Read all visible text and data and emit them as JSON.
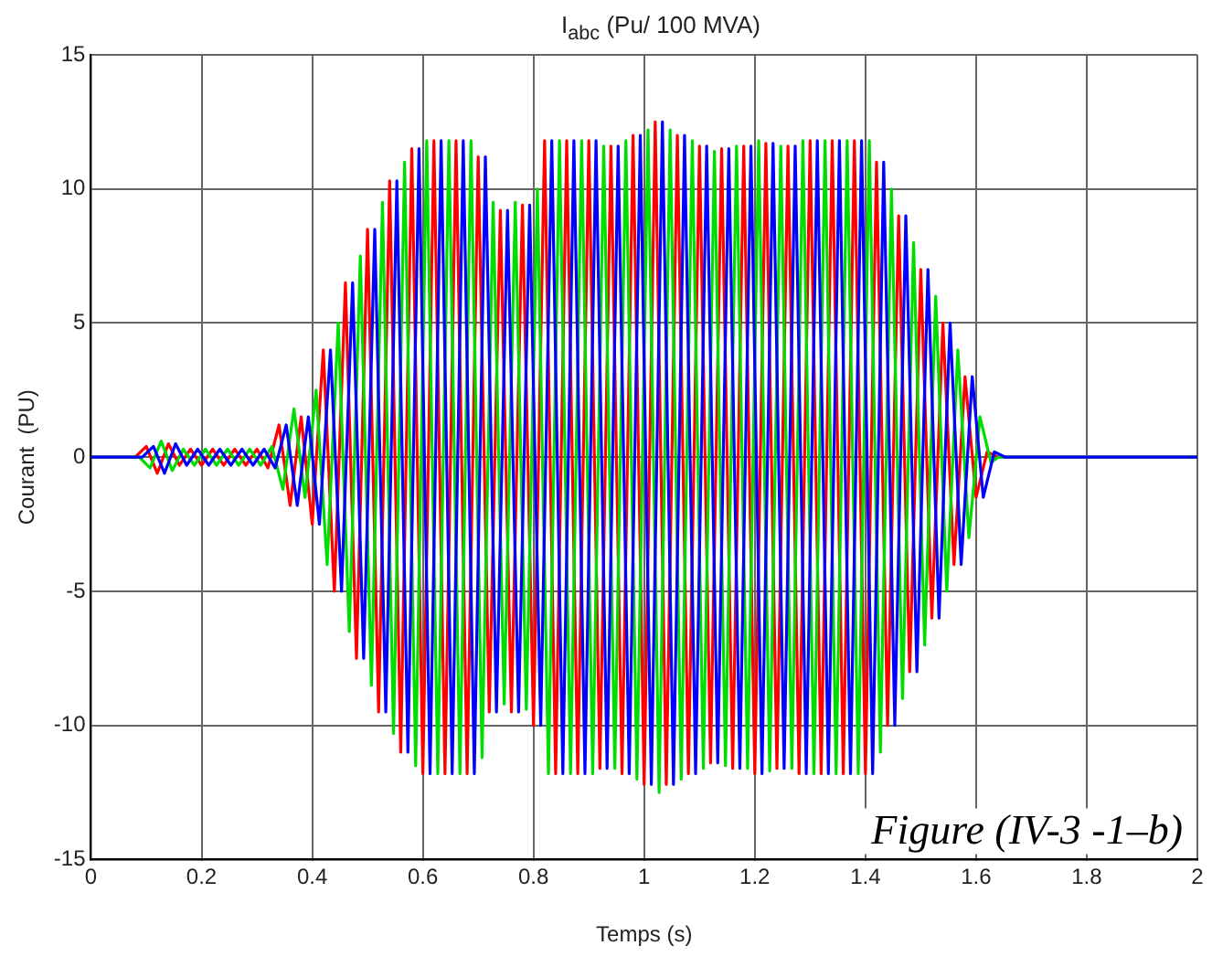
{
  "chart_data": {
    "type": "line",
    "title": "I$_{abc}$    (Pu/ 100 MVA)",
    "xlabel": "Temps (s)",
    "ylabel": "Courant  (PU)",
    "annotations": [
      "Figure (IV-3 -1–b)"
    ],
    "xlim": [
      0,
      2
    ],
    "xticks": [
      0,
      0.2,
      0.4,
      0.6,
      0.8,
      1,
      1.2,
      1.4,
      1.6,
      1.8,
      2
    ],
    "ylim": [
      -15,
      15
    ],
    "yticks": [
      -15,
      -10,
      -5,
      0,
      5,
      10,
      15
    ],
    "grid": true,
    "marker": "none",
    "line_style": "solid",
    "series": [
      {
        "color": "#0000ff",
        "x": [
          0,
          0.093,
          0.113,
          0.133,
          0.153,
          0.173,
          0.193,
          0.213,
          0.233,
          0.253,
          0.273,
          0.293,
          0.313,
          0.333,
          0.353,
          0.373,
          0.393,
          0.413,
          0.433,
          0.453,
          0.473,
          0.493,
          0.513,
          0.533,
          0.553,
          0.573,
          0.593,
          0.613,
          0.633,
          0.653,
          0.673,
          0.693,
          0.713,
          0.733,
          0.753,
          0.773,
          0.793,
          0.813,
          0.833,
          0.853,
          0.873,
          0.893,
          0.913,
          0.933,
          0.953,
          0.973,
          0.993,
          1.013,
          1.033,
          1.053,
          1.073,
          1.093,
          1.113,
          1.133,
          1.153,
          1.173,
          1.193,
          1.213,
          1.233,
          1.253,
          1.273,
          1.293,
          1.313,
          1.333,
          1.353,
          1.373,
          1.393,
          1.413,
          1.433,
          1.453,
          1.473,
          1.493,
          1.513,
          1.533,
          1.553,
          1.573,
          1.593,
          1.613,
          1.633,
          1.653,
          2
        ],
        "values": [
          0,
          0,
          0.4,
          -0.6,
          0.5,
          -0.3,
          0.3,
          -0.3,
          0.3,
          -0.3,
          0.3,
          -0.3,
          0.3,
          -0.4,
          1.2,
          -1.8,
          1.5,
          -2.5,
          4,
          -5,
          6.5,
          -7.5,
          8.5,
          -9.5,
          10.3,
          -11,
          11.5,
          -11.8,
          11.8,
          -11.8,
          11.8,
          -11.8,
          11.2,
          -9.5,
          9.2,
          -9.5,
          9.4,
          -10,
          11.8,
          -11.8,
          11.8,
          -11.8,
          11.8,
          -11.6,
          11.6,
          -11.8,
          12,
          -12.2,
          12.5,
          -12.2,
          12,
          -11.8,
          11.6,
          -11.4,
          11.5,
          -11.6,
          11.6,
          -11.8,
          11.7,
          -11.6,
          11.6,
          -11.8,
          11.8,
          -11.8,
          11.8,
          -11.8,
          11.8,
          -11.8,
          11,
          -10,
          9,
          -8,
          7,
          -6,
          5,
          -4,
          3,
          -1.5,
          0.2,
          0,
          0
        ]
      },
      {
        "color": "#00dd00",
        "x": [
          0,
          0.087,
          0.107,
          0.127,
          0.147,
          0.167,
          0.187,
          0.207,
          0.227,
          0.247,
          0.267,
          0.287,
          0.307,
          0.327,
          0.347,
          0.367,
          0.387,
          0.407,
          0.427,
          0.447,
          0.467,
          0.487,
          0.507,
          0.527,
          0.547,
          0.567,
          0.587,
          0.607,
          0.627,
          0.647,
          0.667,
          0.687,
          0.707,
          0.727,
          0.747,
          0.767,
          0.787,
          0.807,
          0.827,
          0.847,
          0.867,
          0.887,
          0.907,
          0.927,
          0.947,
          0.967,
          0.987,
          1.007,
          1.027,
          1.047,
          1.067,
          1.087,
          1.107,
          1.127,
          1.147,
          1.167,
          1.187,
          1.207,
          1.227,
          1.247,
          1.267,
          1.287,
          1.307,
          1.327,
          1.347,
          1.367,
          1.387,
          1.407,
          1.427,
          1.447,
          1.467,
          1.487,
          1.507,
          1.527,
          1.547,
          1.567,
          1.587,
          1.607,
          1.627,
          1.64,
          2
        ],
        "values": [
          0,
          0,
          -0.4,
          0.6,
          -0.5,
          0.3,
          -0.3,
          0.3,
          -0.3,
          0.3,
          -0.3,
          0.3,
          -0.3,
          0.4,
          -1.2,
          1.8,
          -1.5,
          2.5,
          -4,
          5,
          -6.5,
          7.5,
          -8.5,
          9.5,
          -10.3,
          11,
          -11.5,
          11.8,
          -11.8,
          11.8,
          -11.8,
          11.8,
          -11.2,
          9.5,
          -9.2,
          9.5,
          -9.4,
          10,
          -11.8,
          11.8,
          -11.8,
          11.8,
          -11.8,
          11.6,
          -11.6,
          11.8,
          -12,
          12.2,
          -12.5,
          12.2,
          -12,
          11.8,
          -11.6,
          11.4,
          -11.5,
          11.6,
          -11.6,
          11.8,
          -11.7,
          11.6,
          -11.6,
          11.8,
          -11.8,
          11.8,
          -11.8,
          11.8,
          -11.8,
          11.8,
          -11,
          10,
          -9,
          8,
          -7,
          6,
          -5,
          4,
          -3,
          1.5,
          -0.2,
          0,
          0
        ]
      },
      {
        "color": "#ff0000",
        "x": [
          0,
          0.08,
          0.1,
          0.12,
          0.14,
          0.16,
          0.18,
          0.2,
          0.22,
          0.24,
          0.26,
          0.28,
          0.3,
          0.32,
          0.34,
          0.36,
          0.38,
          0.4,
          0.42,
          0.44,
          0.46,
          0.48,
          0.5,
          0.52,
          0.54,
          0.56,
          0.58,
          0.6,
          0.62,
          0.64,
          0.66,
          0.68,
          0.7,
          0.72,
          0.74,
          0.76,
          0.78,
          0.8,
          0.82,
          0.84,
          0.86,
          0.88,
          0.9,
          0.92,
          0.94,
          0.96,
          0.98,
          1,
          1.02,
          1.04,
          1.06,
          1.08,
          1.1,
          1.12,
          1.14,
          1.16,
          1.18,
          1.2,
          1.22,
          1.24,
          1.26,
          1.28,
          1.3,
          1.32,
          1.34,
          1.36,
          1.38,
          1.4,
          1.42,
          1.44,
          1.46,
          1.48,
          1.5,
          1.52,
          1.54,
          1.56,
          1.58,
          1.6,
          1.62,
          1.64,
          2
        ],
        "values": [
          0,
          0,
          0.4,
          -0.6,
          0.5,
          -0.3,
          0.3,
          -0.3,
          0.3,
          -0.3,
          0.3,
          -0.3,
          0.3,
          -0.4,
          1.2,
          -1.8,
          1.5,
          -2.5,
          4,
          -5,
          6.5,
          -7.5,
          8.5,
          -9.5,
          10.3,
          -11,
          11.5,
          -11.8,
          11.8,
          -11.8,
          11.8,
          -11.8,
          11.2,
          -9.5,
          9.2,
          -9.5,
          9.4,
          -10,
          11.8,
          -11.8,
          11.8,
          -11.8,
          11.8,
          -11.6,
          11.6,
          -11.8,
          12,
          -12.2,
          12.5,
          -12.2,
          12,
          -11.8,
          11.6,
          -11.4,
          11.5,
          -11.6,
          11.6,
          -11.8,
          11.7,
          -11.6,
          11.6,
          -11.8,
          11.8,
          -11.8,
          11.8,
          -11.8,
          11.8,
          -11.8,
          11,
          -10,
          9,
          -8,
          7,
          -6,
          5,
          -4,
          3,
          -1.5,
          0.2,
          0,
          0
        ]
      }
    ]
  }
}
